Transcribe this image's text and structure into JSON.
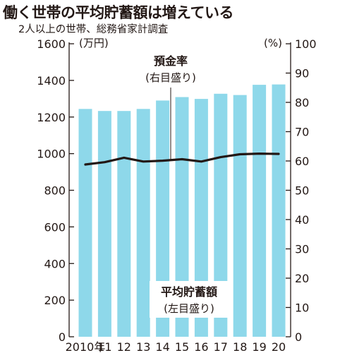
{
  "header": {
    "title": "働く世帯の平均貯蓄額は増えている",
    "subtitle": "2人以上の世帯、総務省家計調査"
  },
  "chart_data": {
    "type": "bar",
    "categories": [
      "2010年",
      "11",
      "12",
      "13",
      "14",
      "15",
      "16",
      "17",
      "18",
      "19",
      "20"
    ],
    "series": [
      {
        "name": "平均貯蓄額",
        "note": "(左目盛り)",
        "type": "bar",
        "axis": "left",
        "color": "#8ed8ea",
        "values": [
          1244,
          1233,
          1233,
          1244,
          1290,
          1309,
          1299,
          1327,
          1320,
          1376,
          1378
        ]
      },
      {
        "name": "預金率",
        "note": "(右目盛り)",
        "type": "line",
        "axis": "right",
        "color": "#231815",
        "values": [
          58.8,
          59.6,
          61.1,
          59.8,
          60.1,
          60.6,
          59.8,
          61.3,
          62.3,
          62.5,
          62.4
        ]
      }
    ],
    "y_left": {
      "unit": "(万円)",
      "range": [
        0,
        1600
      ],
      "ticks": [
        "0",
        "200",
        "400",
        "600",
        "800",
        "1000",
        "1200",
        "1400",
        "1600"
      ]
    },
    "y_right": {
      "unit": "(%)",
      "range": [
        0,
        100
      ],
      "ticks": [
        "0",
        "10",
        "20",
        "30",
        "40",
        "50",
        "60",
        "70",
        "80",
        "90",
        "100"
      ]
    },
    "grid": false,
    "colors": {
      "bar": "#8ed8ea",
      "line": "#231815",
      "axis": "#231815",
      "text": "#231815"
    }
  }
}
